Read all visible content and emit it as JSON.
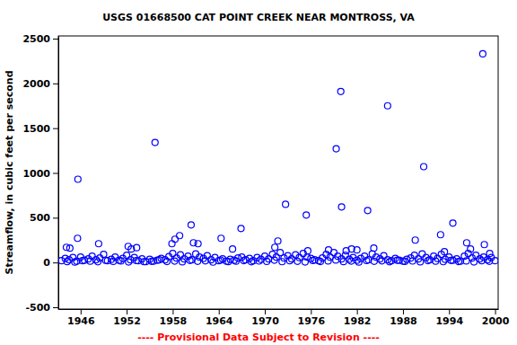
{
  "chart_data": {
    "type": "scatter",
    "title": "USGS 01668500 CAT POINT CREEK NEAR MONTROSS, VA",
    "y_label": "Streamflow, in cubic feet per second",
    "annotations": [
      "---- Provisional Data Subject to Revision ----"
    ],
    "xlim": [
      1943.1,
      2000.4
    ],
    "ylim": [
      -520,
      2530
    ],
    "xticks": [
      1946,
      1952,
      1958,
      1964,
      1970,
      1976,
      1982,
      1988,
      1994,
      2000
    ],
    "yticks": [
      -500,
      0,
      500,
      1000,
      1500,
      2000,
      2500
    ],
    "series": [
      {
        "color": "#0000ff",
        "marker": "circle",
        "x": [
          1943.5,
          1944,
          1944.5,
          1945,
          1945.5,
          1946,
          1946.5,
          1947,
          1947.5,
          1948,
          1948.5,
          1949,
          1949.5,
          1950,
          1950.5,
          1951,
          1951.5,
          1952,
          1952.5,
          1953,
          1953.5,
          1954,
          1954.5,
          1955,
          1955.5,
          1956,
          1956.5,
          1957,
          1957.5,
          1958,
          1958.5,
          1959,
          1959.5,
          1960,
          1960.5,
          1961,
          1961.5,
          1962,
          1962.5,
          1963,
          1963.5,
          1964,
          1964.5,
          1965,
          1965.5,
          1966,
          1966.5,
          1967,
          1967.5,
          1968,
          1968.5,
          1969,
          1969.5,
          1970,
          1970.5,
          1971,
          1971.5,
          1972,
          1972.5,
          1973,
          1973.5,
          1974,
          1974.5,
          1975,
          1975.5,
          1976,
          1976.5,
          1977,
          1977.5,
          1978,
          1978.5,
          1979,
          1979.5,
          1980,
          1980.5,
          1981,
          1981.5,
          1982,
          1982.5,
          1983,
          1983.5,
          1984,
          1984.5,
          1985,
          1985.5,
          1986,
          1986.5,
          1987,
          1987.5,
          1988,
          1988.5,
          1989,
          1989.5,
          1990,
          1990.5,
          1991,
          1991.5,
          1992,
          1992.5,
          1993,
          1993.5,
          1994,
          1994.5,
          1995,
          1995.5,
          1996,
          1996.5,
          1997,
          1997.5,
          1998,
          1998.5,
          1999,
          1999.5,
          2000,
          1944.25,
          1945.25,
          1946.25,
          1947.25,
          1948.25,
          1949.25,
          1950.25,
          1951.25,
          1952.25,
          1953.25,
          1954.25,
          1955.25,
          1956.25,
          1957.25,
          1958.25,
          1959.25,
          1960.25,
          1961.25,
          1962.25,
          1963.25,
          1964.25,
          1965.25,
          1966.25,
          1967.25,
          1968.25,
          1969.25,
          1970.25,
          1971.25,
          1972.25,
          1973.25,
          1974.25,
          1975.25,
          1976.25,
          1977.25,
          1978.25,
          1979.25,
          1980.25,
          1981.25,
          1982.25,
          1983.25,
          1984.25,
          1985.25,
          1986.25,
          1987.25,
          1988.25,
          1989.25,
          1990.25,
          1991.25,
          1992.25,
          1993.25,
          1994.25,
          1995.25,
          1996.25,
          1997.25,
          1998.25,
          1999.25,
          1944.15,
          1944.6,
          1945.65,
          1945.6,
          1948.35,
          1952.2,
          1952.6,
          1953.3,
          1955.7,
          1957.9,
          1958.3,
          1958.9,
          1960.4,
          1960.7,
          1961.3,
          1964.3,
          1965.8,
          1966.9,
          1971.3,
          1971.7,
          1972.7,
          1975.4,
          1975.6,
          1978.3,
          1979.3,
          1979.9,
          1980.0,
          1980.6,
          1981.3,
          1982.0,
          1983.4,
          1984.2,
          1986.0,
          1989.6,
          1990.7,
          1992.9,
          1993.4,
          1994.5,
          1996.3,
          1996.8,
          1998.4,
          1998.6,
          1999.3
        ],
        "values": [
          20,
          45,
          30,
          55,
          15,
          60,
          25,
          40,
          70,
          30,
          50,
          90,
          20,
          35,
          60,
          25,
          45,
          80,
          30,
          55,
          20,
          40,
          10,
          35,
          15,
          25,
          45,
          30,
          65,
          100,
          50,
          85,
          40,
          70,
          30,
          95,
          60,
          45,
          75,
          30,
          55,
          20,
          40,
          15,
          35,
          25,
          50,
          60,
          30,
          45,
          20,
          55,
          35,
          70,
          40,
          90,
          60,
          110,
          50,
          75,
          40,
          85,
          55,
          100,
          60,
          45,
          30,
          20,
          50,
          90,
          60,
          110,
          70,
          40,
          80,
          35,
          55,
          25,
          45,
          70,
          30,
          95,
          60,
          40,
          75,
          30,
          20,
          45,
          25,
          15,
          35,
          50,
          80,
          40,
          95,
          55,
          30,
          70,
          45,
          90,
          35,
          60,
          25,
          40,
          15,
          70,
          100,
          50,
          80,
          40,
          60,
          30,
          55,
          20,
          10,
          5,
          20,
          15,
          8,
          25,
          12,
          18,
          6,
          22,
          9,
          14,
          30,
          11,
          16,
          7,
          24,
          13,
          19,
          4,
          27,
          10,
          15,
          21,
          8,
          17,
          12,
          26,
          9,
          20,
          14,
          6,
          23,
          11,
          18,
          28,
          10,
          16,
          5,
          22,
          13,
          19,
          8,
          25,
          12,
          17,
          7,
          21,
          15,
          9,
          24,
          11,
          18,
          6,
          20,
          14,
          170,
          160,
          930,
          270,
          210,
          180,
          150,
          165,
          1340,
          210,
          260,
          300,
          420,
          220,
          210,
          270,
          150,
          380,
          170,
          240,
          650,
          530,
          130,
          140,
          1270,
          1910,
          620,
          130,
          150,
          140,
          580,
          160,
          1750,
          250,
          1070,
          310,
          120,
          440,
          220,
          150,
          2330,
          200,
          100
        ]
      }
    ]
  }
}
